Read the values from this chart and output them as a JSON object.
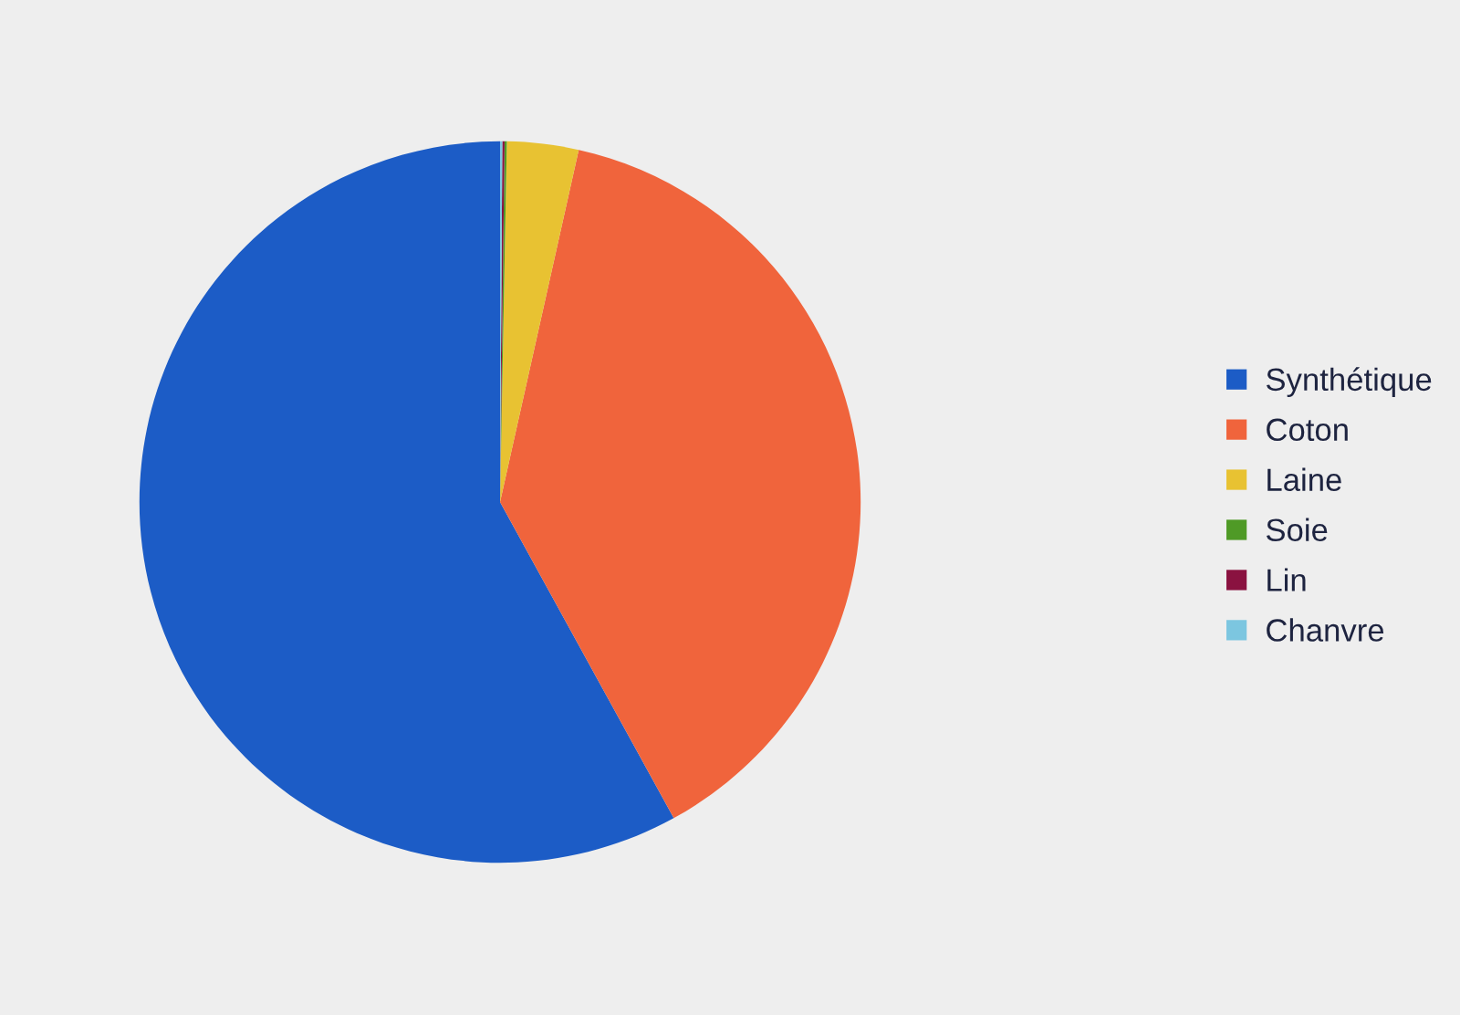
{
  "chart_data": {
    "type": "pie",
    "categories": [
      "Synthétique",
      "Coton",
      "Laine",
      "Soie",
      "Lin",
      "Chanvre"
    ],
    "values": [
      58.0,
      38.5,
      3.2,
      0.1,
      0.1,
      0.1
    ],
    "colors": [
      "#1c5cc6",
      "#f0643c",
      "#e8c232",
      "#4f9a26",
      "#8a1240",
      "#7cc6e0"
    ],
    "legend": "right"
  }
}
